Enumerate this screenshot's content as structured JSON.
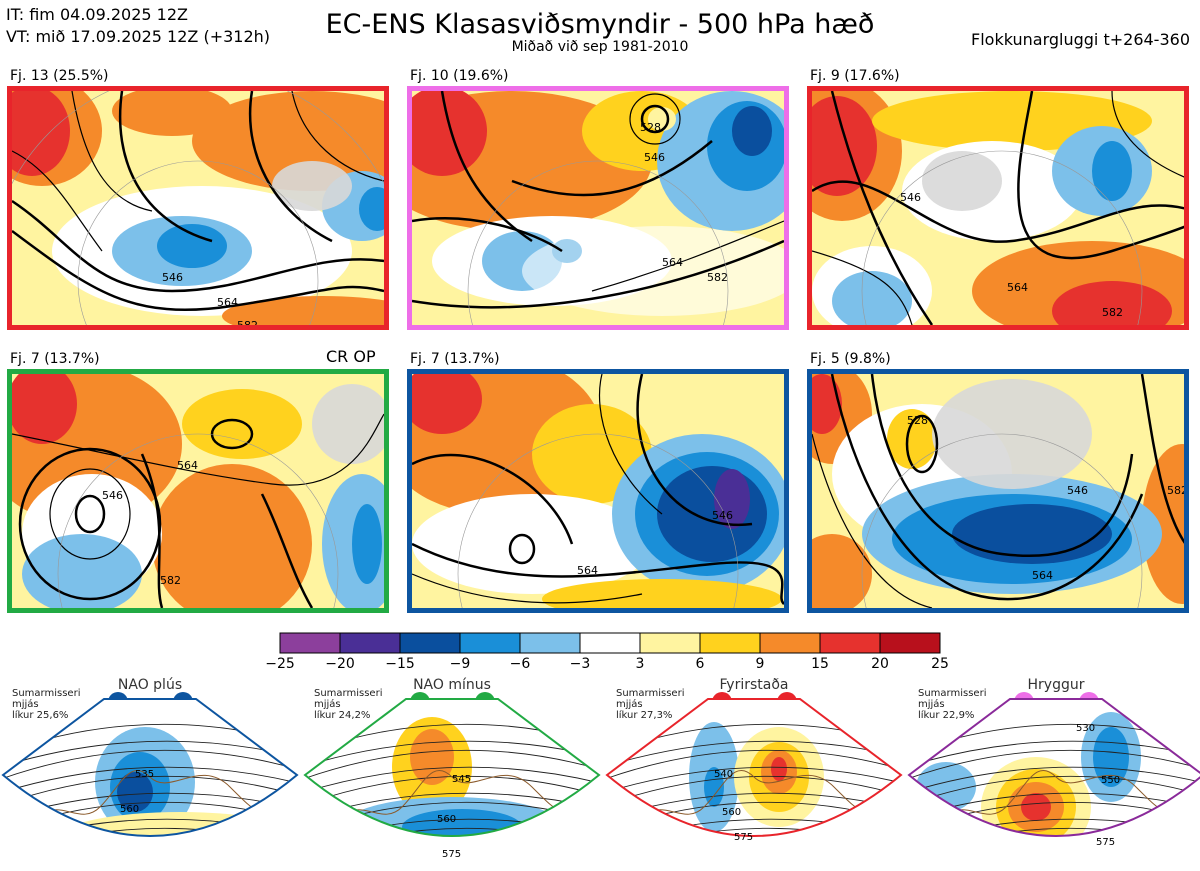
{
  "header": {
    "issue_time": "IT: fim 04.09.2025 12Z",
    "valid_time": "VT: mið 17.09.2025 12Z  (+312h)",
    "title": "EC-ENS Klasasviðsmyndir - 500 hPa hæð",
    "subtitle": "Miðað við sep 1981-2010",
    "window": "Flokkunargluggi t+264-360"
  },
  "crop_label": "CR OP",
  "colors": {
    "red_border": "#e8242b",
    "magenta_border": "#ee6ee8",
    "green_border": "#22aa44",
    "blue_border": "#0d55a0",
    "purple_border": "#8a2a9a"
  },
  "panels": [
    {
      "label": "Fj. 13 (25.5%)",
      "border": "#e8242b",
      "contours": [
        "546",
        "564",
        "582"
      ]
    },
    {
      "label": "Fj. 10 (19.6%)",
      "border": "#ee6ee8",
      "contours": [
        "528",
        "546",
        "564",
        "582"
      ]
    },
    {
      "label": "Fj. 9 (17.6%)",
      "border": "#e8242b",
      "contours": [
        "546",
        "564",
        "582"
      ]
    },
    {
      "label": "Fj. 7 (13.7%)",
      "border": "#22aa44",
      "contours": [
        "546",
        "564",
        "582"
      ]
    },
    {
      "label": "Fj. 7 (13.7%)",
      "border": "#0d55a0",
      "contours": [
        "546",
        "564"
      ]
    },
    {
      "label": "Fj. 5 (9.8%)",
      "border": "#0d55a0",
      "contours": [
        "528",
        "546",
        "564",
        "582"
      ]
    }
  ],
  "chart_data": {
    "type": "heatmap",
    "title": "EC-ENS Klasasviðsmyndir - 500 hPa hæð",
    "colorbar": {
      "ticks": [
        "−25",
        "−20",
        "−15",
        "−9",
        "−6",
        "−3",
        "3",
        "6",
        "9",
        "15",
        "20",
        "25"
      ],
      "colors": [
        "#8c3f9c",
        "#4a2f96",
        "#0a4f9e",
        "#1a8fd8",
        "#7cc0ea",
        "#ffffff",
        "#fff4a0",
        "#ffd21e",
        "#f58a2a",
        "#e6322e",
        "#b8101c"
      ]
    },
    "panels": [
      {
        "cluster": "Fj. 13",
        "percent": 25.5
      },
      {
        "cluster": "Fj. 10",
        "percent": 19.6
      },
      {
        "cluster": "Fj. 9",
        "percent": 17.6
      },
      {
        "cluster": "Fj. 7",
        "percent": 13.7
      },
      {
        "cluster": "Fj. 7",
        "percent": 13.7
      },
      {
        "cluster": "Fj. 5",
        "percent": 9.8
      }
    ]
  },
  "regimes": [
    {
      "title": "NAO plús",
      "note1": "Sumarmisseri",
      "note2": "mjjás",
      "prob": "líkur 25,6%",
      "dot": "#0d55a0",
      "border": "#0d55a0",
      "contours": [
        "535",
        "560"
      ]
    },
    {
      "title": "NAO mínus",
      "note1": "Sumarmisseri",
      "note2": "mjjás",
      "prob": "líkur 24,2%",
      "dot": "#22aa44",
      "border": "#22aa44",
      "contours": [
        "545",
        "560",
        "575"
      ]
    },
    {
      "title": "Fyrirstaða",
      "note1": "Sumarmisseri",
      "note2": "mjjás",
      "prob": "líkur 27,3%",
      "dot": "#e8242b",
      "border": "#e8242b",
      "contours": [
        "540",
        "560",
        "575"
      ]
    },
    {
      "title": "Hryggur",
      "note1": "Sumarmisseri",
      "note2": "mjjás",
      "prob": "líkur 22,9%",
      "dot": "#ee6ee8",
      "border": "#8a2a9a",
      "contours": [
        "530",
        "550",
        "575"
      ]
    }
  ]
}
